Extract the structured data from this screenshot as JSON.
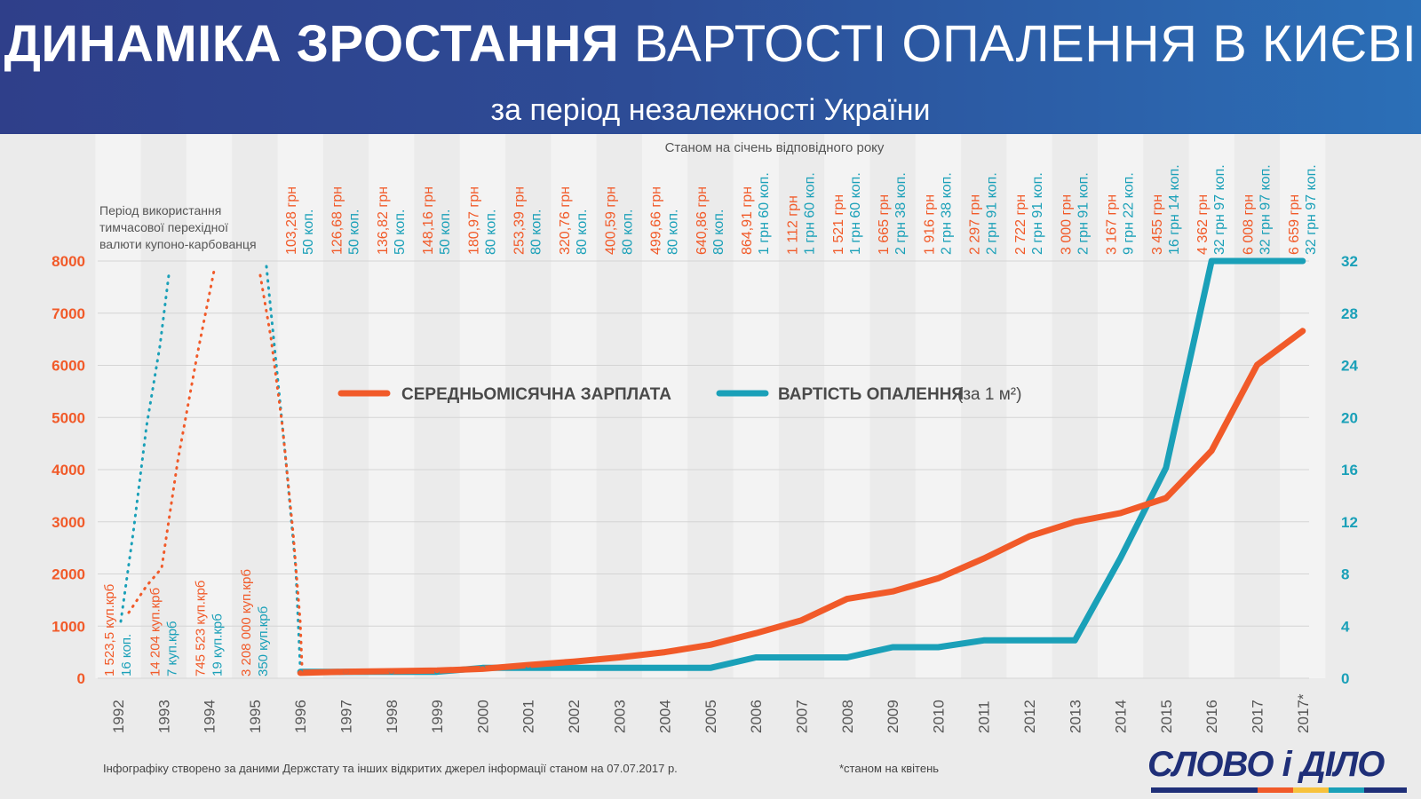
{
  "header": {
    "title_bold": "ДИНАМІКА ЗРОСТАННЯ",
    "title_light": "ВАРТОСТІ ОПАЛЕННЯ В КИЄВІ",
    "subtitle": "за період незалежності України"
  },
  "top_note": "Станом на січень відповідного року",
  "coupon_note": [
    "Період використання",
    "тимчасової перехідної",
    "валюти купоно-карбованця"
  ],
  "legend": {
    "salary": "СЕРЕДНЬОМІСЯЧНА ЗАРПЛАТА",
    "heating": "ВАРТІСТЬ ОПАЛЕННЯ",
    "heating_unit": "(за 1 м²)"
  },
  "footer": {
    "source": "Інфографіку створено за даними Держстату та інших відкритих джерел інформації станом на 07.07.2017 р.",
    "april": "*станом на квітень",
    "logo": "СЛОВО і ДІЛО"
  },
  "colors": {
    "salary": "#f15a29",
    "heating": "#1aa0b8",
    "header": "#2d4c96",
    "grid": "#ffffff",
    "band": "#f3f3f3"
  },
  "chart_data": {
    "type": "line",
    "categories": [
      "1992",
      "1993",
      "1994",
      "1995",
      "1996",
      "1997",
      "1998",
      "1999",
      "2000",
      "2001",
      "2002",
      "2003",
      "2004",
      "2005",
      "2006",
      "2007",
      "2008",
      "2009",
      "2010",
      "2011",
      "2012",
      "2013",
      "2014",
      "2015",
      "2016",
      "2017",
      "2017*"
    ],
    "y_left": {
      "ticks": [
        0,
        1000,
        2000,
        3000,
        4000,
        5000,
        6000,
        7000,
        8000
      ],
      "range": [
        0,
        8000
      ]
    },
    "y_right": {
      "ticks": [
        0,
        4,
        8,
        12,
        16,
        20,
        24,
        28,
        32
      ],
      "range": [
        0,
        32
      ]
    },
    "series": [
      {
        "name": "СЕРЕДНЬОМІСЯЧНА ЗАРПЛАТА",
        "axis": "left",
        "values": [
          null,
          null,
          null,
          null,
          103.28,
          126.68,
          136.82,
          148.16,
          180.97,
          253.39,
          320.76,
          400.59,
          499.66,
          640.86,
          864.91,
          1112,
          1521,
          1665,
          1916,
          2297,
          2722,
          3000,
          3167,
          3455,
          4362,
          6008,
          6659
        ],
        "labels": [
          "1 523,5 куп.крб",
          "14 204 куп.крб",
          "745 523 куп.крб",
          "3 208 000 куп.крб",
          "103,28 грн",
          "126,68 грн",
          "136,82 грн",
          "148,16 грн",
          "180,97 грн",
          "253,39 грн",
          "320,76 грн",
          "400,59 грн",
          "499,66 грн",
          "640,86 грн",
          "864,91 грн",
          "1 112 грн",
          "1 521 грн",
          "1 665 грн",
          "1 916 грн",
          "2 297 грн",
          "2 722 грн",
          "3 000 грн",
          "3 167 грн",
          "3 455 грн",
          "4 362 грн",
          "6 008 грн",
          "6 659 грн"
        ]
      },
      {
        "name": "ВАРТІСТЬ ОПАЛЕННЯ",
        "axis": "right",
        "values": [
          null,
          null,
          null,
          null,
          0.5,
          0.5,
          0.5,
          0.5,
          0.8,
          0.8,
          0.8,
          0.8,
          0.8,
          0.8,
          1.6,
          1.6,
          1.6,
          2.38,
          2.38,
          2.91,
          2.91,
          2.91,
          9.22,
          16.14,
          32.97,
          32.97,
          32.97
        ],
        "labels": [
          "16 коп.",
          "7 куп.крб",
          "19 куп.крб",
          "350 куп.крб",
          "50 коп.",
          "50 коп.",
          "50 коп.",
          "50 коп.",
          "80 коп.",
          "80 коп.",
          "80 коп.",
          "80 коп.",
          "80 коп.",
          "80 коп.",
          "1 грн 60 коп.",
          "1 грн 60 коп.",
          "1 грн 60 коп.",
          "2 грн 38 коп.",
          "2 грн 38 коп.",
          "2 грн 91 коп.",
          "2 грн 91 коп.",
          "2 грн 91 коп.",
          "9 грн 22 коп.",
          "16 грн 14 коп.",
          "32 грн 97 коп.",
          "32 грн 97 коп.",
          "32 грн 97 коп."
        ]
      }
    ]
  }
}
